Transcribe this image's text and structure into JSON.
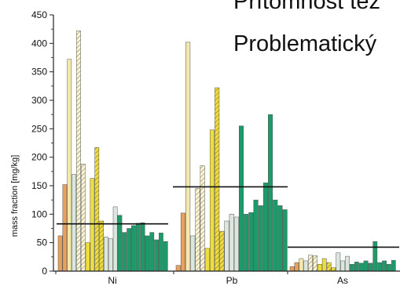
{
  "overlay": {
    "line1": "Přítomnost těž",
    "line2": "Problematický"
  },
  "chart_data": {
    "type": "bar",
    "ylabel": "mass fraction  [mg/kg]",
    "xlabel": "",
    "ylim": [
      0,
      450
    ],
    "yticks": [
      0,
      50,
      100,
      150,
      200,
      250,
      300,
      350,
      400,
      450
    ],
    "groups": [
      {
        "name": "Ni",
        "limit": 83,
        "values": [
          62,
          152,
          372,
          170,
          422,
          188,
          50,
          163,
          217,
          88,
          60,
          57,
          113,
          98,
          68,
          75,
          80,
          84,
          85,
          62,
          68,
          55,
          67,
          52
        ]
      },
      {
        "name": "Pb",
        "limit": 148,
        "values": [
          10,
          102,
          402,
          62,
          145,
          185,
          40,
          248,
          322,
          70,
          88,
          100,
          95,
          255,
          100,
          103,
          125,
          115,
          155,
          275,
          125,
          115,
          108
        ]
      },
      {
        "name": "As",
        "limit": 42,
        "values": [
          8,
          15,
          22,
          18,
          28,
          27,
          12,
          22,
          15,
          6,
          32,
          18,
          26,
          12,
          16,
          14,
          18,
          14,
          52,
          15,
          18,
          12,
          19
        ]
      }
    ],
    "colors": {
      "orange": "#e8a05c",
      "cream": "#f3e9ad",
      "yellow": "#ecde3c",
      "pale": "#dbe6df",
      "green": "#1d9a69",
      "axis": "#222222",
      "limit_line": "#111111"
    }
  }
}
